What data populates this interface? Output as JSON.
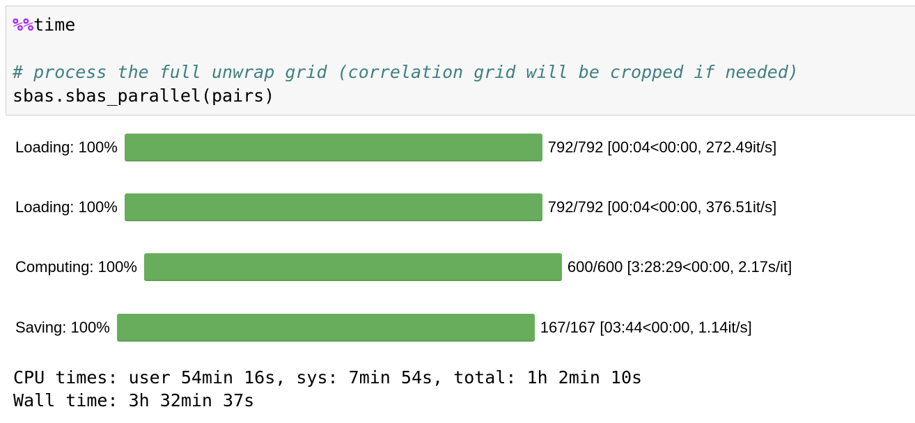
{
  "cell": {
    "magic": "%%",
    "magic_cmd": "time",
    "comment": "# process the full unwrap grid (correlation grid will be cropped if needed)",
    "code": "sbas.sbas_parallel(pairs)"
  },
  "progress": [
    {
      "label": "Loading: 100%",
      "percent": 100,
      "stats": "792/792 [00:04<00:00, 272.49it/s]"
    },
    {
      "label": "Loading: 100%",
      "percent": 100,
      "stats": "792/792 [00:04<00:00, 376.51it/s]"
    },
    {
      "label": "Computing: 100%",
      "percent": 100,
      "stats": "600/600 [3:28:29<00:00, 2.17s/it]"
    },
    {
      "label": "Saving: 100%",
      "percent": 100,
      "stats": "167/167 [03:44<00:00, 1.14it/s]"
    }
  ],
  "bar_color": "#67ad5b",
  "output": {
    "cpu_times": "CPU times: user 54min 16s, sys: 7min 54s, total: 1h 2min 10s",
    "wall_time": "Wall time: 3h 32min 37s"
  }
}
